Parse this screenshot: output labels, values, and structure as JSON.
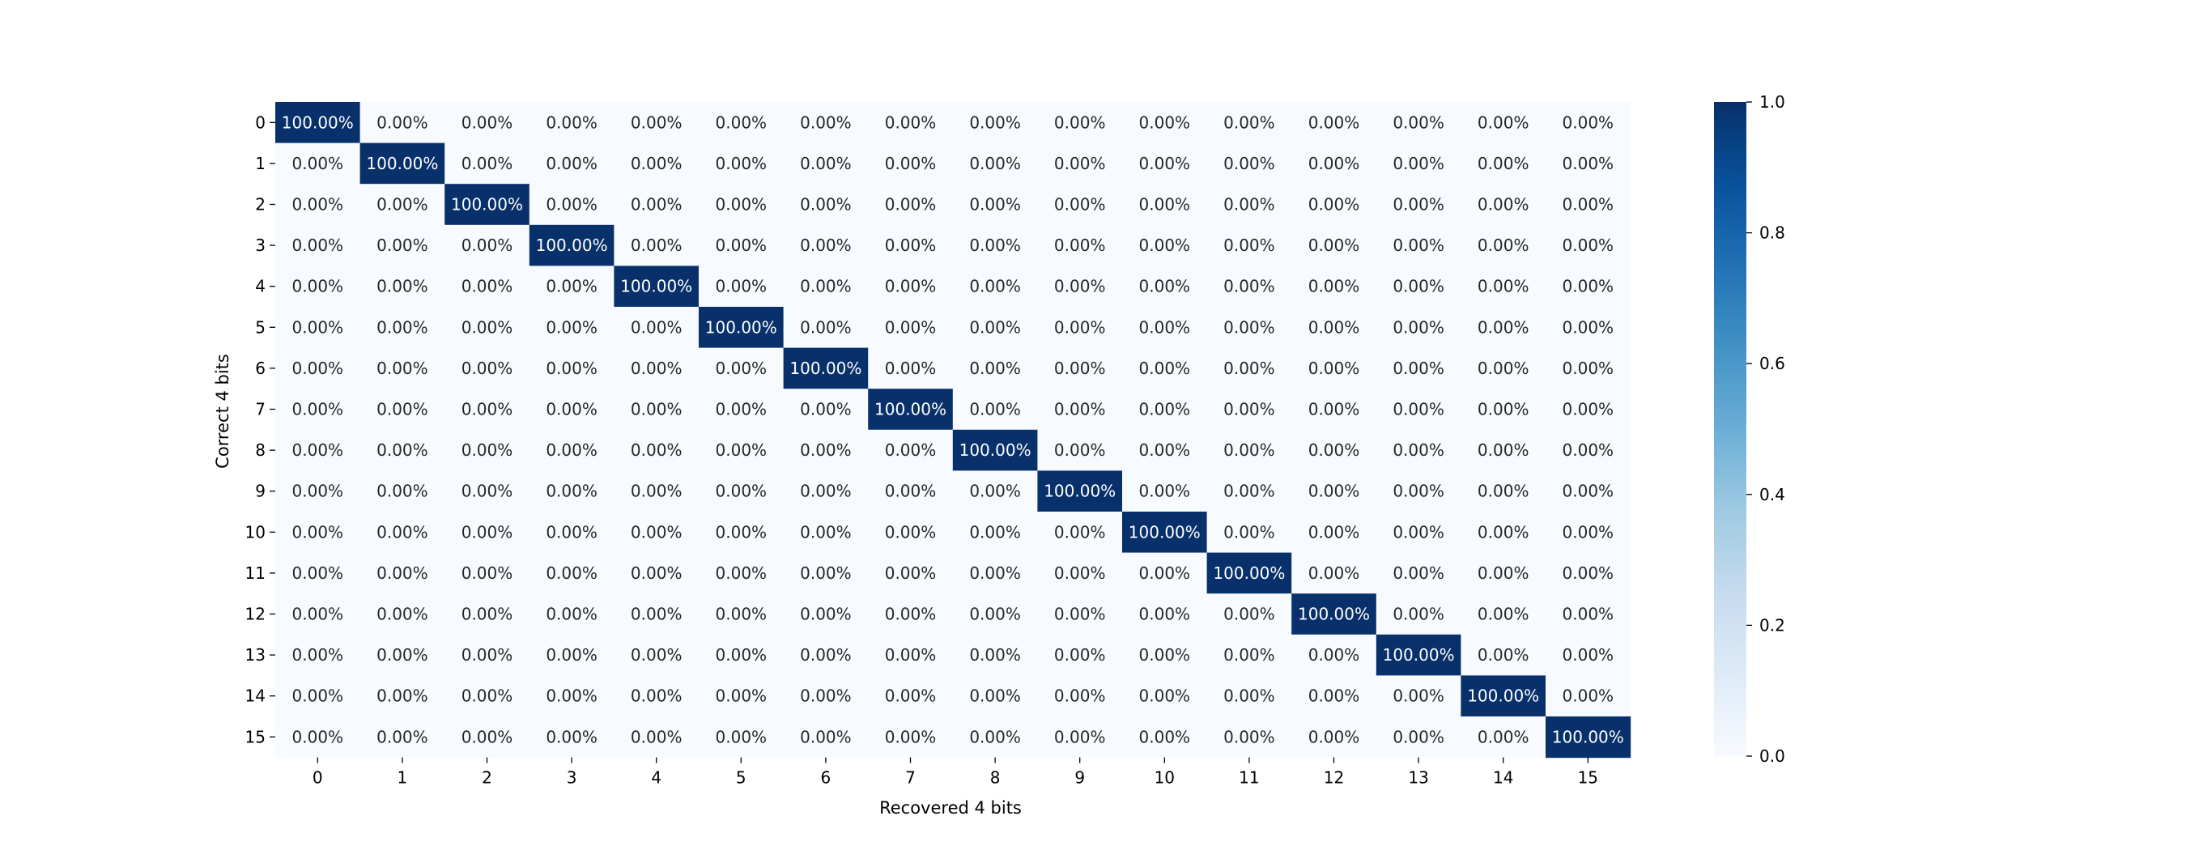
{
  "chart_data": {
    "type": "heatmap",
    "title": "",
    "xlabel": "Recovered 4 bits",
    "ylabel": "Correct 4 bits",
    "x_categories": [
      "0",
      "1",
      "2",
      "3",
      "4",
      "5",
      "6",
      "7",
      "8",
      "9",
      "10",
      "11",
      "12",
      "13",
      "14",
      "15"
    ],
    "y_categories": [
      "0",
      "1",
      "2",
      "3",
      "4",
      "5",
      "6",
      "7",
      "8",
      "9",
      "10",
      "11",
      "12",
      "13",
      "14",
      "15"
    ],
    "value_format": "percent_2dp",
    "values": [
      [
        1,
        0,
        0,
        0,
        0,
        0,
        0,
        0,
        0,
        0,
        0,
        0,
        0,
        0,
        0,
        0
      ],
      [
        0,
        1,
        0,
        0,
        0,
        0,
        0,
        0,
        0,
        0,
        0,
        0,
        0,
        0,
        0,
        0
      ],
      [
        0,
        0,
        1,
        0,
        0,
        0,
        0,
        0,
        0,
        0,
        0,
        0,
        0,
        0,
        0,
        0
      ],
      [
        0,
        0,
        0,
        1,
        0,
        0,
        0,
        0,
        0,
        0,
        0,
        0,
        0,
        0,
        0,
        0
      ],
      [
        0,
        0,
        0,
        0,
        1,
        0,
        0,
        0,
        0,
        0,
        0,
        0,
        0,
        0,
        0,
        0
      ],
      [
        0,
        0,
        0,
        0,
        0,
        1,
        0,
        0,
        0,
        0,
        0,
        0,
        0,
        0,
        0,
        0
      ],
      [
        0,
        0,
        0,
        0,
        0,
        0,
        1,
        0,
        0,
        0,
        0,
        0,
        0,
        0,
        0,
        0
      ],
      [
        0,
        0,
        0,
        0,
        0,
        0,
        0,
        1,
        0,
        0,
        0,
        0,
        0,
        0,
        0,
        0
      ],
      [
        0,
        0,
        0,
        0,
        0,
        0,
        0,
        0,
        1,
        0,
        0,
        0,
        0,
        0,
        0,
        0
      ],
      [
        0,
        0,
        0,
        0,
        0,
        0,
        0,
        0,
        0,
        1,
        0,
        0,
        0,
        0,
        0,
        0
      ],
      [
        0,
        0,
        0,
        0,
        0,
        0,
        0,
        0,
        0,
        0,
        1,
        0,
        0,
        0,
        0,
        0
      ],
      [
        0,
        0,
        0,
        0,
        0,
        0,
        0,
        0,
        0,
        0,
        0,
        1,
        0,
        0,
        0,
        0
      ],
      [
        0,
        0,
        0,
        0,
        0,
        0,
        0,
        0,
        0,
        0,
        0,
        0,
        1,
        0,
        0,
        0
      ],
      [
        0,
        0,
        0,
        0,
        0,
        0,
        0,
        0,
        0,
        0,
        0,
        0,
        0,
        1,
        0,
        0
      ],
      [
        0,
        0,
        0,
        0,
        0,
        0,
        0,
        0,
        0,
        0,
        0,
        0,
        0,
        0,
        1,
        0
      ],
      [
        0,
        0,
        0,
        0,
        0,
        0,
        0,
        0,
        0,
        0,
        0,
        0,
        0,
        0,
        0,
        1
      ]
    ],
    "colormap": "Blues",
    "color_low": "#f7fbff",
    "color_high": "#08306b",
    "colorbar": {
      "range": [
        0.0,
        1.0
      ],
      "ticks": [
        "0.0",
        "0.2",
        "0.4",
        "0.6",
        "0.8",
        "1.0"
      ],
      "placement": "right"
    },
    "grid": false,
    "legend": "none"
  }
}
